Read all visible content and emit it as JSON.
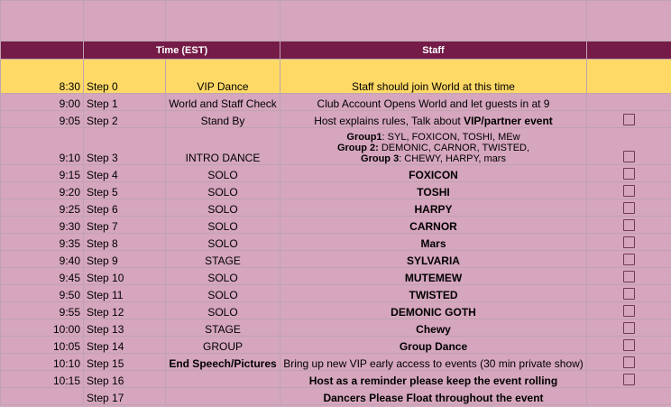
{
  "header": {
    "time_label": "Time (EST)",
    "staff_label": "Staff"
  },
  "rows": [
    {
      "time": "8:30",
      "step": "Step 0",
      "activity": "VIP Dance",
      "parts": [
        {
          "text": "Staff should join World at this time",
          "bold": false
        }
      ],
      "checkbox": false
    },
    {
      "time": "9:00",
      "step": "Step 1",
      "activity": "World and Staff Check",
      "parts": [
        {
          "text": "Club Account Opens World and let guests in at 9",
          "bold": false
        }
      ],
      "checkbox": false
    },
    {
      "time": "9:05",
      "step": "Step 2",
      "activity": "Stand By",
      "parts": [
        {
          "text": "Host explains rules, Talk about ",
          "bold": false
        },
        {
          "text": "VIP/partner event",
          "bold": true
        }
      ],
      "checkbox": true
    },
    {
      "time": "9:10",
      "step": "Step 3",
      "activity": "INTRO DANCE",
      "groups": [
        {
          "label": "Group1",
          "members": ": SYL, FOXICON, TOSHI, MEw"
        },
        {
          "label": "Group 2:",
          "members": " DEMONIC, CARNOR, TWISTED,"
        },
        {
          "label": "Group 3",
          "members": ": CHEWY, HARPY, mars"
        }
      ],
      "checkbox": true
    },
    {
      "time": "9:15",
      "step": "Step 4",
      "activity": "SOLO",
      "parts": [
        {
          "text": "FOXICON",
          "bold": true
        }
      ],
      "checkbox": true
    },
    {
      "time": "9:20",
      "step": "Step 5",
      "activity": "SOLO",
      "parts": [
        {
          "text": "TOSHI",
          "bold": true
        }
      ],
      "checkbox": true
    },
    {
      "time": "9:25",
      "step": "Step 6",
      "activity": "SOLO",
      "parts": [
        {
          "text": "HARPY",
          "bold": true
        }
      ],
      "checkbox": true
    },
    {
      "time": "9:30",
      "step": "Step 7",
      "activity": "SOLO",
      "parts": [
        {
          "text": "CARNOR",
          "bold": true
        }
      ],
      "checkbox": true
    },
    {
      "time": "9:35",
      "step": "Step 8",
      "activity": "SOLO",
      "parts": [
        {
          "text": "Mars",
          "bold": true
        }
      ],
      "checkbox": true
    },
    {
      "time": "9:40",
      "step": "Step 9",
      "activity": "STAGE",
      "parts": [
        {
          "text": "SYLVARIA",
          "bold": true
        }
      ],
      "checkbox": true
    },
    {
      "time": "9:45",
      "step": "Step 10",
      "activity": "SOLO",
      "parts": [
        {
          "text": "MUTEMEW",
          "bold": true
        }
      ],
      "checkbox": true
    },
    {
      "time": "9:50",
      "step": "Step 11",
      "activity": "SOLO",
      "parts": [
        {
          "text": "TWISTED",
          "bold": true
        }
      ],
      "checkbox": true
    },
    {
      "time": "9:55",
      "step": "Step 12",
      "activity": "SOLO",
      "parts": [
        {
          "text": "DEMONIC GOTH",
          "bold": true
        }
      ],
      "checkbox": true
    },
    {
      "time": "10:00",
      "step": "Step 13",
      "activity": "STAGE",
      "parts": [
        {
          "text": "Chewy",
          "bold": true
        }
      ],
      "checkbox": true
    },
    {
      "time": "10:05",
      "step": "Step 14",
      "activity": "GROUP",
      "parts": [
        {
          "text": "Group Dance",
          "bold": true
        }
      ],
      "checkbox": true
    },
    {
      "time": "10:10",
      "step": "Step 15",
      "activity": "End Speech/Pictures",
      "activity_bold": true,
      "parts": [
        {
          "text": "Bring up new VIP early access to events (30 min private show)",
          "bold": false
        }
      ],
      "checkbox": true
    },
    {
      "time": "10:15",
      "step": "Step 16",
      "activity": "",
      "parts": [
        {
          "text": "Host as a reminder please keep the event rolling",
          "bold": true
        }
      ],
      "checkbox": true
    },
    {
      "time": "",
      "step": "Step 17",
      "activity": "",
      "parts": [
        {
          "text": "Dancers Please Float throughout the event",
          "bold": true
        }
      ],
      "checkbox": false
    }
  ],
  "colors": {
    "background": "#d5a6bd",
    "header_bg": "#741b47",
    "highlight_row": "#ffd966",
    "checkbox_border": "#6e3b52"
  }
}
